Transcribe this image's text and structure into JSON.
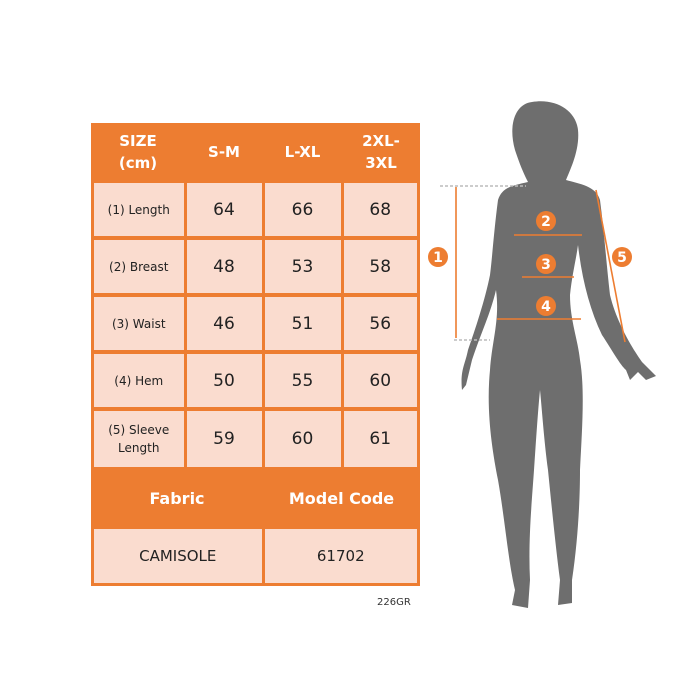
{
  "table": {
    "header": [
      "SIZE\n(cm)",
      "S-M",
      "L-XL",
      "2XL-\n3XL"
    ],
    "rows": [
      {
        "label": "(1) Length",
        "values": [
          "64",
          "66",
          "68"
        ]
      },
      {
        "label": "(2) Breast",
        "values": [
          "48",
          "53",
          "58"
        ]
      },
      {
        "label": "(3) Waist",
        "values": [
          "46",
          "51",
          "56"
        ]
      },
      {
        "label": "(4) Hem",
        "values": [
          "50",
          "55",
          "60"
        ]
      },
      {
        "label": "(5) Sleeve Length",
        "values": [
          "59",
          "60",
          "61"
        ]
      }
    ],
    "fabric_label": "Fabric",
    "model_code_label": "Model Code",
    "fabric_value": "CAMISOLE",
    "model_code_value": "61702"
  },
  "product_code": "226GR",
  "figure": {
    "markers": [
      "1",
      "2",
      "3",
      "4",
      "5"
    ]
  },
  "colors": {
    "accent": "#ED7D31",
    "cell": "#FADCCF",
    "silhouette": "#6E6E6E"
  }
}
